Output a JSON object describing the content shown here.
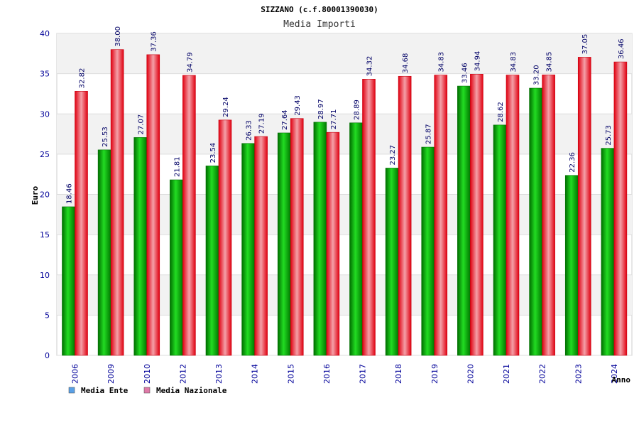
{
  "chart_data": {
    "type": "bar",
    "title": "SIZZANO (c.f.80001390030)",
    "subtitle": "Media Importi",
    "xlabel": "Anno",
    "ylabel": "Euro",
    "ylim": [
      0,
      40
    ],
    "yticks": [
      "0",
      "5",
      "10",
      "15",
      "20",
      "25",
      "30",
      "35",
      "40"
    ],
    "grid": true,
    "legend_position": "bottom-left",
    "categories": [
      "2006",
      "2009",
      "2010",
      "2012",
      "2013",
      "2014",
      "2015",
      "2016",
      "2017",
      "2018",
      "2019",
      "2020",
      "2021",
      "2022",
      "2023",
      "2024"
    ],
    "series": [
      {
        "name": "Media Ente",
        "color": "#00b400",
        "legend_color": "#5aa0e6",
        "values": [
          18.46,
          25.53,
          27.07,
          21.81,
          23.54,
          26.33,
          27.64,
          28.97,
          28.89,
          23.27,
          25.87,
          33.46,
          28.62,
          33.2,
          22.36,
          25.73
        ],
        "labels": [
          "18.46",
          "25.53",
          "27.07",
          "21.81",
          "23.54",
          "26.33",
          "27.64",
          "28.97",
          "28.89",
          "23.27",
          "25.87",
          "33.46",
          "28.62",
          "33.20",
          "22.36",
          "25.73"
        ]
      },
      {
        "name": "Media Nazionale",
        "color": "#e6141e",
        "legend_color": "#e07aa8",
        "values": [
          32.82,
          38.0,
          37.36,
          34.79,
          29.24,
          27.19,
          29.43,
          27.71,
          34.32,
          34.68,
          34.83,
          34.94,
          34.83,
          34.85,
          37.05,
          36.46
        ],
        "labels": [
          "32.82",
          "38.00",
          "37.36",
          "34.79",
          "29.24",
          "27.19",
          "29.43",
          "27.71",
          "34.32",
          "34.68",
          "34.83",
          "34.94",
          "34.83",
          "34.85",
          "37.05",
          "36.46"
        ]
      }
    ]
  }
}
